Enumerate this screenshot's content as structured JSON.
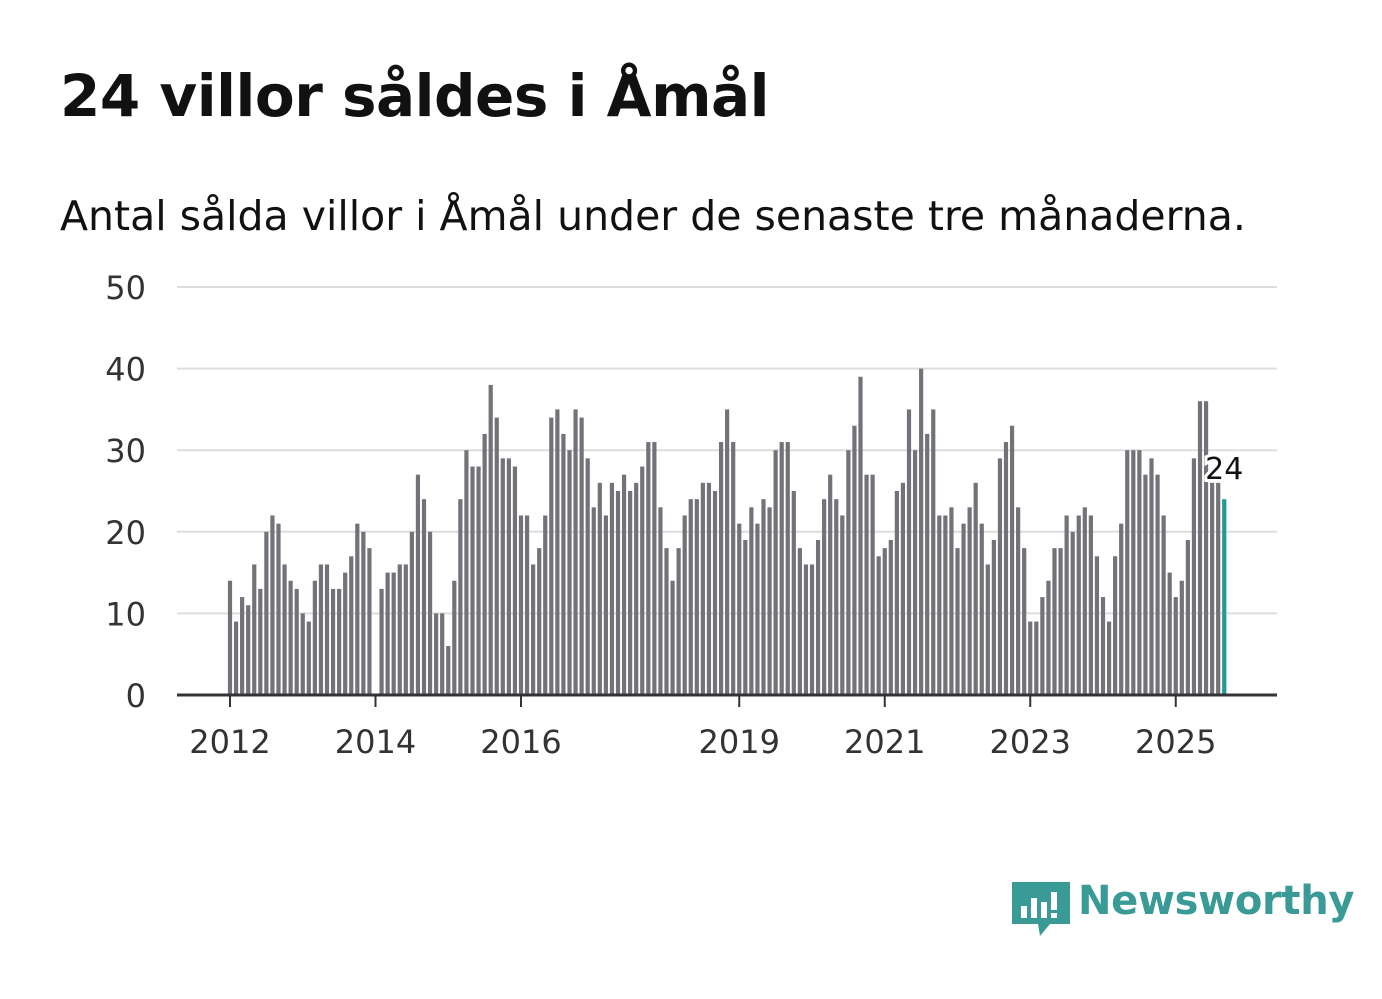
{
  "title": "24 villor såldes i Åmål",
  "subtitle": "Antal sålda villor i Åmål under de senaste tre månaderna.",
  "brand": {
    "name": "Newsworthy",
    "color": "#3a9a95",
    "icon": "newsworthy-logo-icon"
  },
  "colors": {
    "bar": "#737278",
    "highlight": "#1f9a96",
    "grid": "#dddddd",
    "axis": "#333333"
  },
  "chart_data": {
    "type": "bar",
    "start": {
      "year": 2012,
      "month": 1
    },
    "values": [
      14,
      9,
      12,
      11,
      16,
      13,
      20,
      22,
      21,
      16,
      14,
      13,
      10,
      9,
      14,
      16,
      16,
      13,
      13,
      15,
      17,
      21,
      20,
      18,
      0,
      13,
      15,
      15,
      16,
      16,
      20,
      27,
      24,
      20,
      10,
      10,
      6,
      14,
      24,
      30,
      28,
      28,
      32,
      38,
      34,
      29,
      29,
      28,
      22,
      22,
      16,
      18,
      22,
      34,
      35,
      32,
      30,
      35,
      34,
      29,
      23,
      26,
      22,
      26,
      25,
      27,
      25,
      26,
      28,
      31,
      31,
      23,
      18,
      14,
      18,
      22,
      24,
      24,
      26,
      26,
      25,
      31,
      35,
      31,
      21,
      19,
      23,
      21,
      24,
      23,
      30,
      31,
      31,
      25,
      18,
      16,
      16,
      19,
      24,
      27,
      24,
      22,
      30,
      33,
      39,
      27,
      27,
      17,
      18,
      19,
      25,
      26,
      35,
      30,
      40,
      32,
      35,
      22,
      22,
      23,
      18,
      21,
      23,
      26,
      21,
      16,
      19,
      29,
      31,
      33,
      23,
      18,
      9,
      9,
      12,
      14,
      18,
      18,
      22,
      20,
      22,
      23,
      22,
      17,
      12,
      9,
      17,
      21,
      30,
      30,
      30,
      27,
      29,
      27,
      22,
      15,
      12,
      14,
      19,
      29,
      36,
      36,
      26,
      26,
      24
    ],
    "highlight_label": "24",
    "title": "Antal sålda villor i Åmål under de senaste tre månaderna.",
    "xlabel": "",
    "ylabel": "",
    "ylim": [
      0,
      50
    ],
    "yticks": [
      0,
      10,
      20,
      30,
      40,
      50
    ],
    "xticks": [
      {
        "label": "2012",
        "year": 2012
      },
      {
        "label": "2014",
        "year": 2014
      },
      {
        "label": "2016",
        "year": 2016
      },
      {
        "label": "2019",
        "year": 2019
      },
      {
        "label": "2021",
        "year": 2021
      },
      {
        "label": "2023",
        "year": 2023
      },
      {
        "label": "2025",
        "year": 2025
      }
    ],
    "grid": true
  }
}
